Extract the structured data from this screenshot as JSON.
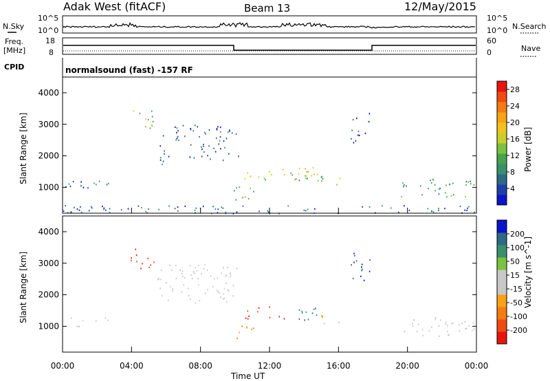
{
  "header": {
    "station": "Adak West (fitACF)",
    "beam": "Beam 13",
    "date": "12/May/2015"
  },
  "noise_panel": {
    "left_label": "N.Sky",
    "right_label": "N.Search",
    "tick_top": "10^5",
    "tick_bottom": "10^0"
  },
  "freq_panel": {
    "left_label_1": "Freq.",
    "left_label_2": "[MHz]",
    "left_ticks": [
      "18",
      "8"
    ],
    "right_ticks": [
      "60",
      "0"
    ],
    "right_label": "Nave"
  },
  "cpid": {
    "label": "CPID",
    "value": "normalsound (fast) -157 RF"
  },
  "colors": {
    "power": [
      "#0a14c8",
      "#1f3fa8",
      "#2c6a86",
      "#3a8f6c",
      "#49a24c",
      "#7cc23e",
      "#c8cf2c",
      "#f0c21e",
      "#f6a316",
      "#f47c12",
      "#ef4b10",
      "#e6160c"
    ],
    "velocity": [
      "#e6160c",
      "#ef4b10",
      "#f47c12",
      "#f6a316",
      "#c8c8c8",
      "#c8c8c8",
      "#7cc23e",
      "#3a8f6c",
      "#2c6a86",
      "#0a14c8"
    ]
  },
  "chart_data": [
    {
      "type": "heatmap",
      "name": "power",
      "xlabel": "",
      "ylabel": "Slant Range [km]",
      "x_ticks": [
        "00:00",
        "04:00",
        "08:00",
        "12:00",
        "16:00",
        "20:00",
        "00:00"
      ],
      "y_ticks": [
        "1000",
        "2000",
        "3000",
        "4000"
      ],
      "ylim": [
        180,
        4500
      ],
      "colorbar": {
        "label": "Power [dB]",
        "ticks": [
          "4",
          "8",
          "12",
          "16",
          "20",
          "24",
          "28"
        ],
        "range": [
          0,
          30
        ]
      },
      "regions": [
        {
          "t0": 0.0,
          "t1": 2.8,
          "r0": 950,
          "r1": 1300,
          "v": 6
        },
        {
          "t0": 3.9,
          "t1": 5.3,
          "r0": 2850,
          "r1": 3500,
          "v": 14
        },
        {
          "t0": 5.5,
          "t1": 10.2,
          "r0": 1750,
          "r1": 3000,
          "v": 5
        },
        {
          "t0": 9.8,
          "t1": 11.2,
          "r0": 600,
          "r1": 1100,
          "v": 10
        },
        {
          "t0": 10.5,
          "t1": 14.8,
          "r0": 1250,
          "r1": 1650,
          "v": 16
        },
        {
          "t0": 13.3,
          "t1": 16.4,
          "r0": 1100,
          "r1": 1400,
          "v": 12
        },
        {
          "t0": 16.7,
          "t1": 17.8,
          "r0": 2300,
          "r1": 3500,
          "v": 5
        },
        {
          "t0": 19.6,
          "t1": 24.0,
          "r0": 700,
          "r1": 1300,
          "v": 9
        },
        {
          "t0": 0.0,
          "t1": 24.0,
          "r0": 180,
          "r1": 450,
          "v": 5
        }
      ]
    },
    {
      "type": "heatmap",
      "name": "velocity",
      "xlabel": "Time UT",
      "ylabel": "Slant Range [km]",
      "x_ticks": [
        "00:00",
        "04:00",
        "08:00",
        "12:00",
        "16:00",
        "20:00",
        "00:00"
      ],
      "y_ticks": [
        "1000",
        "2000",
        "3000",
        "4000"
      ],
      "ylim": [
        180,
        4500
      ],
      "colorbar": {
        "label": "Velocity [m s^-1]",
        "ticks": [
          "200",
          "100",
          "50",
          "15",
          "-15",
          "-50",
          "-100",
          "-200"
        ],
        "range": [
          -250,
          250
        ]
      },
      "regions": [
        {
          "t0": 0.0,
          "t1": 2.8,
          "r0": 950,
          "r1": 1300,
          "v": 0
        },
        {
          "t0": 3.9,
          "t1": 5.3,
          "r0": 2850,
          "r1": 3500,
          "v": -200
        },
        {
          "t0": 5.5,
          "t1": 10.2,
          "r0": 1750,
          "r1": 3000,
          "v": -10
        },
        {
          "t0": 9.8,
          "t1": 11.2,
          "r0": 600,
          "r1": 1100,
          "v": -90
        },
        {
          "t0": 10.5,
          "t1": 12.9,
          "r0": 1250,
          "r1": 1650,
          "v": -220
        },
        {
          "t0": 12.9,
          "t1": 14.8,
          "r0": 1200,
          "r1": 1600,
          "v": 160
        },
        {
          "t0": 14.8,
          "t1": 16.4,
          "r0": 1100,
          "r1": 1400,
          "v": -60
        },
        {
          "t0": 16.7,
          "t1": 17.8,
          "r0": 2300,
          "r1": 3500,
          "v": 200
        },
        {
          "t0": 19.6,
          "t1": 24.0,
          "r0": 700,
          "r1": 1300,
          "v": 0
        }
      ]
    }
  ]
}
